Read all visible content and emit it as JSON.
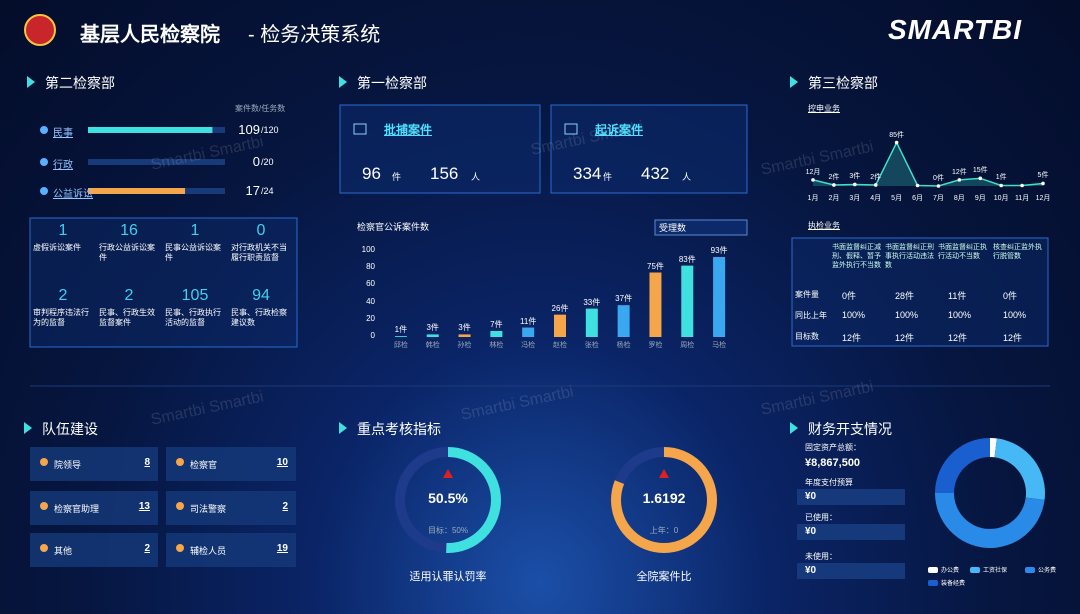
{
  "header": {
    "title": "基层人民检察院",
    "subtitle": "- 检务决策系统",
    "logo": "SMARTBI",
    "watermark": "Smartbi Smartbi"
  },
  "dept2": {
    "title": "第二检察部",
    "legend": "案件数/任务数",
    "rows": [
      {
        "name": "民事",
        "value": 109,
        "total": 120,
        "total_label": "/120",
        "color": "#3fe0e0"
      },
      {
        "name": "行政",
        "value": 0,
        "total": 20,
        "total_label": "/20",
        "color": "#3fe0e0"
      },
      {
        "name": "公益诉讼",
        "value": 17,
        "total": 24,
        "total_label": "/24",
        "color": "#f5a54a"
      }
    ],
    "stats": [
      {
        "value": 1,
        "label": "虚假诉讼案件"
      },
      {
        "value": 16,
        "label": "行政公益诉讼案件"
      },
      {
        "value": 1,
        "label": "民事公益诉讼案件"
      },
      {
        "value": 0,
        "label": "对行政机关不当履行职责监督"
      },
      {
        "value": 2,
        "label": "审判程序违法行为的监督"
      },
      {
        "value": 2,
        "label": "民事、行政生效监督案件"
      },
      {
        "value": 105,
        "label": "民事、行政执行活动的监督"
      },
      {
        "value": 94,
        "label": "民事、行政检察建议数"
      }
    ]
  },
  "dept1": {
    "title": "第一检察部",
    "cards": [
      {
        "name": "批捕案件",
        "cases": 96,
        "cases_unit": "件",
        "people": 156,
        "people_unit": "人"
      },
      {
        "name": "起诉案件",
        "cases": 334,
        "cases_unit": "件",
        "people": 432,
        "people_unit": "人"
      }
    ],
    "chart_data": {
      "type": "bar",
      "title": "检察官公诉案件数",
      "dropdown": "受理数",
      "categories": [
        "邱检",
        "韩检",
        "孙检",
        "林检",
        "冯检",
        "赵检",
        "张检",
        "杨检",
        "罗检",
        "周检",
        "马检"
      ],
      "values": [
        1,
        3,
        3,
        7,
        11,
        26,
        33,
        37,
        75,
        83,
        93
      ],
      "value_labels": [
        "1件",
        "3件",
        "3件",
        "7件",
        "11件",
        "26件",
        "33件",
        "37件",
        "75件",
        "83件",
        "93件"
      ],
      "colors": [
        "#3fe0e0",
        "#3fe0e0",
        "#f5a54a",
        "#3fe0e0",
        "#3aa8f0",
        "#f5a54a",
        "#3fe0e0",
        "#3aa8f0",
        "#f5a54a",
        "#3fe0e0",
        "#3aa8f0"
      ],
      "ylim": [
        0,
        100
      ],
      "yticks": [
        0,
        20,
        40,
        60,
        80,
        100
      ],
      "grid": false
    }
  },
  "dept3": {
    "title": "第三检察部",
    "chart_data": {
      "type": "line",
      "title": "控申业务",
      "categories": [
        "1月",
        "2月",
        "3月",
        "4月",
        "5月",
        "6月",
        "7月",
        "8月",
        "9月",
        "10月",
        "11月",
        "12月"
      ],
      "values": [
        12,
        2,
        3,
        2,
        85,
        1,
        0,
        12,
        15,
        1,
        1,
        5
      ],
      "value_labels": [
        "12月",
        "2件",
        "3件",
        "2件",
        "85件",
        null,
        "0件",
        "12件",
        "15件",
        "1件",
        null,
        "5件"
      ],
      "color": "#3fe0c8",
      "ylim": [
        0,
        90
      ]
    },
    "table": {
      "title": "执检业务",
      "header": [
        "书面监督纠正减刑、假释、暂予监外执行不当数",
        "书面监督纠正刑事执行活动违法数",
        "书面监督纠正执行活动不当数",
        "核查纠正监外执行脱管数"
      ],
      "rows": [
        [
          "案件量",
          "0件",
          "28件",
          "11件",
          "0件"
        ],
        [
          "同比上年",
          "100%",
          "100%",
          "100%",
          "100%"
        ],
        [
          "目标数",
          "12件",
          "12件",
          "12件",
          "12件"
        ]
      ]
    }
  },
  "team": {
    "title": "队伍建设",
    "items": [
      {
        "name": "院领导",
        "value": 8
      },
      {
        "name": "检察官",
        "value": 10
      },
      {
        "name": "检察官助理",
        "value": 13
      },
      {
        "name": "司法警察",
        "value": 2
      },
      {
        "name": "其他",
        "value": 2
      },
      {
        "name": "辅检人员",
        "value": 19
      }
    ]
  },
  "kpi": {
    "title": "重点考核指标",
    "gauges": [
      {
        "value": 50.5,
        "label": "50.5%",
        "note": "目标：50%",
        "name": "适用认罪认罚率",
        "ylim": [
          0,
          100
        ],
        "color": "#3fe0e0",
        "track": "#1e3a8a"
      },
      {
        "value": 1.6192,
        "label": "1.6192",
        "note": "上年：0",
        "name": "全院案件比",
        "ylim": [
          0,
          2
        ],
        "color": "#f5a54a",
        "track": "#1e3a8a"
      }
    ]
  },
  "finance": {
    "title": "财务开支情况",
    "items": [
      {
        "label": "固定资产总额：",
        "value": "¥8,867,500"
      },
      {
        "label": "年度支付预算",
        "value": "¥0"
      },
      {
        "label": "已使用：",
        "value": "¥0"
      },
      {
        "label": "未使用：",
        "value": "¥0"
      }
    ],
    "chart_data": {
      "type": "pie",
      "series": [
        {
          "name": "办公费",
          "color": "#ffffff",
          "value": 2
        },
        {
          "name": "工资社保",
          "color": "#46b8f5",
          "value": 25
        },
        {
          "name": "公务费",
          "color": "#2a8ae8",
          "value": 48
        },
        {
          "name": "装备经费",
          "color": "#1a5fd0",
          "value": 25
        }
      ]
    }
  }
}
